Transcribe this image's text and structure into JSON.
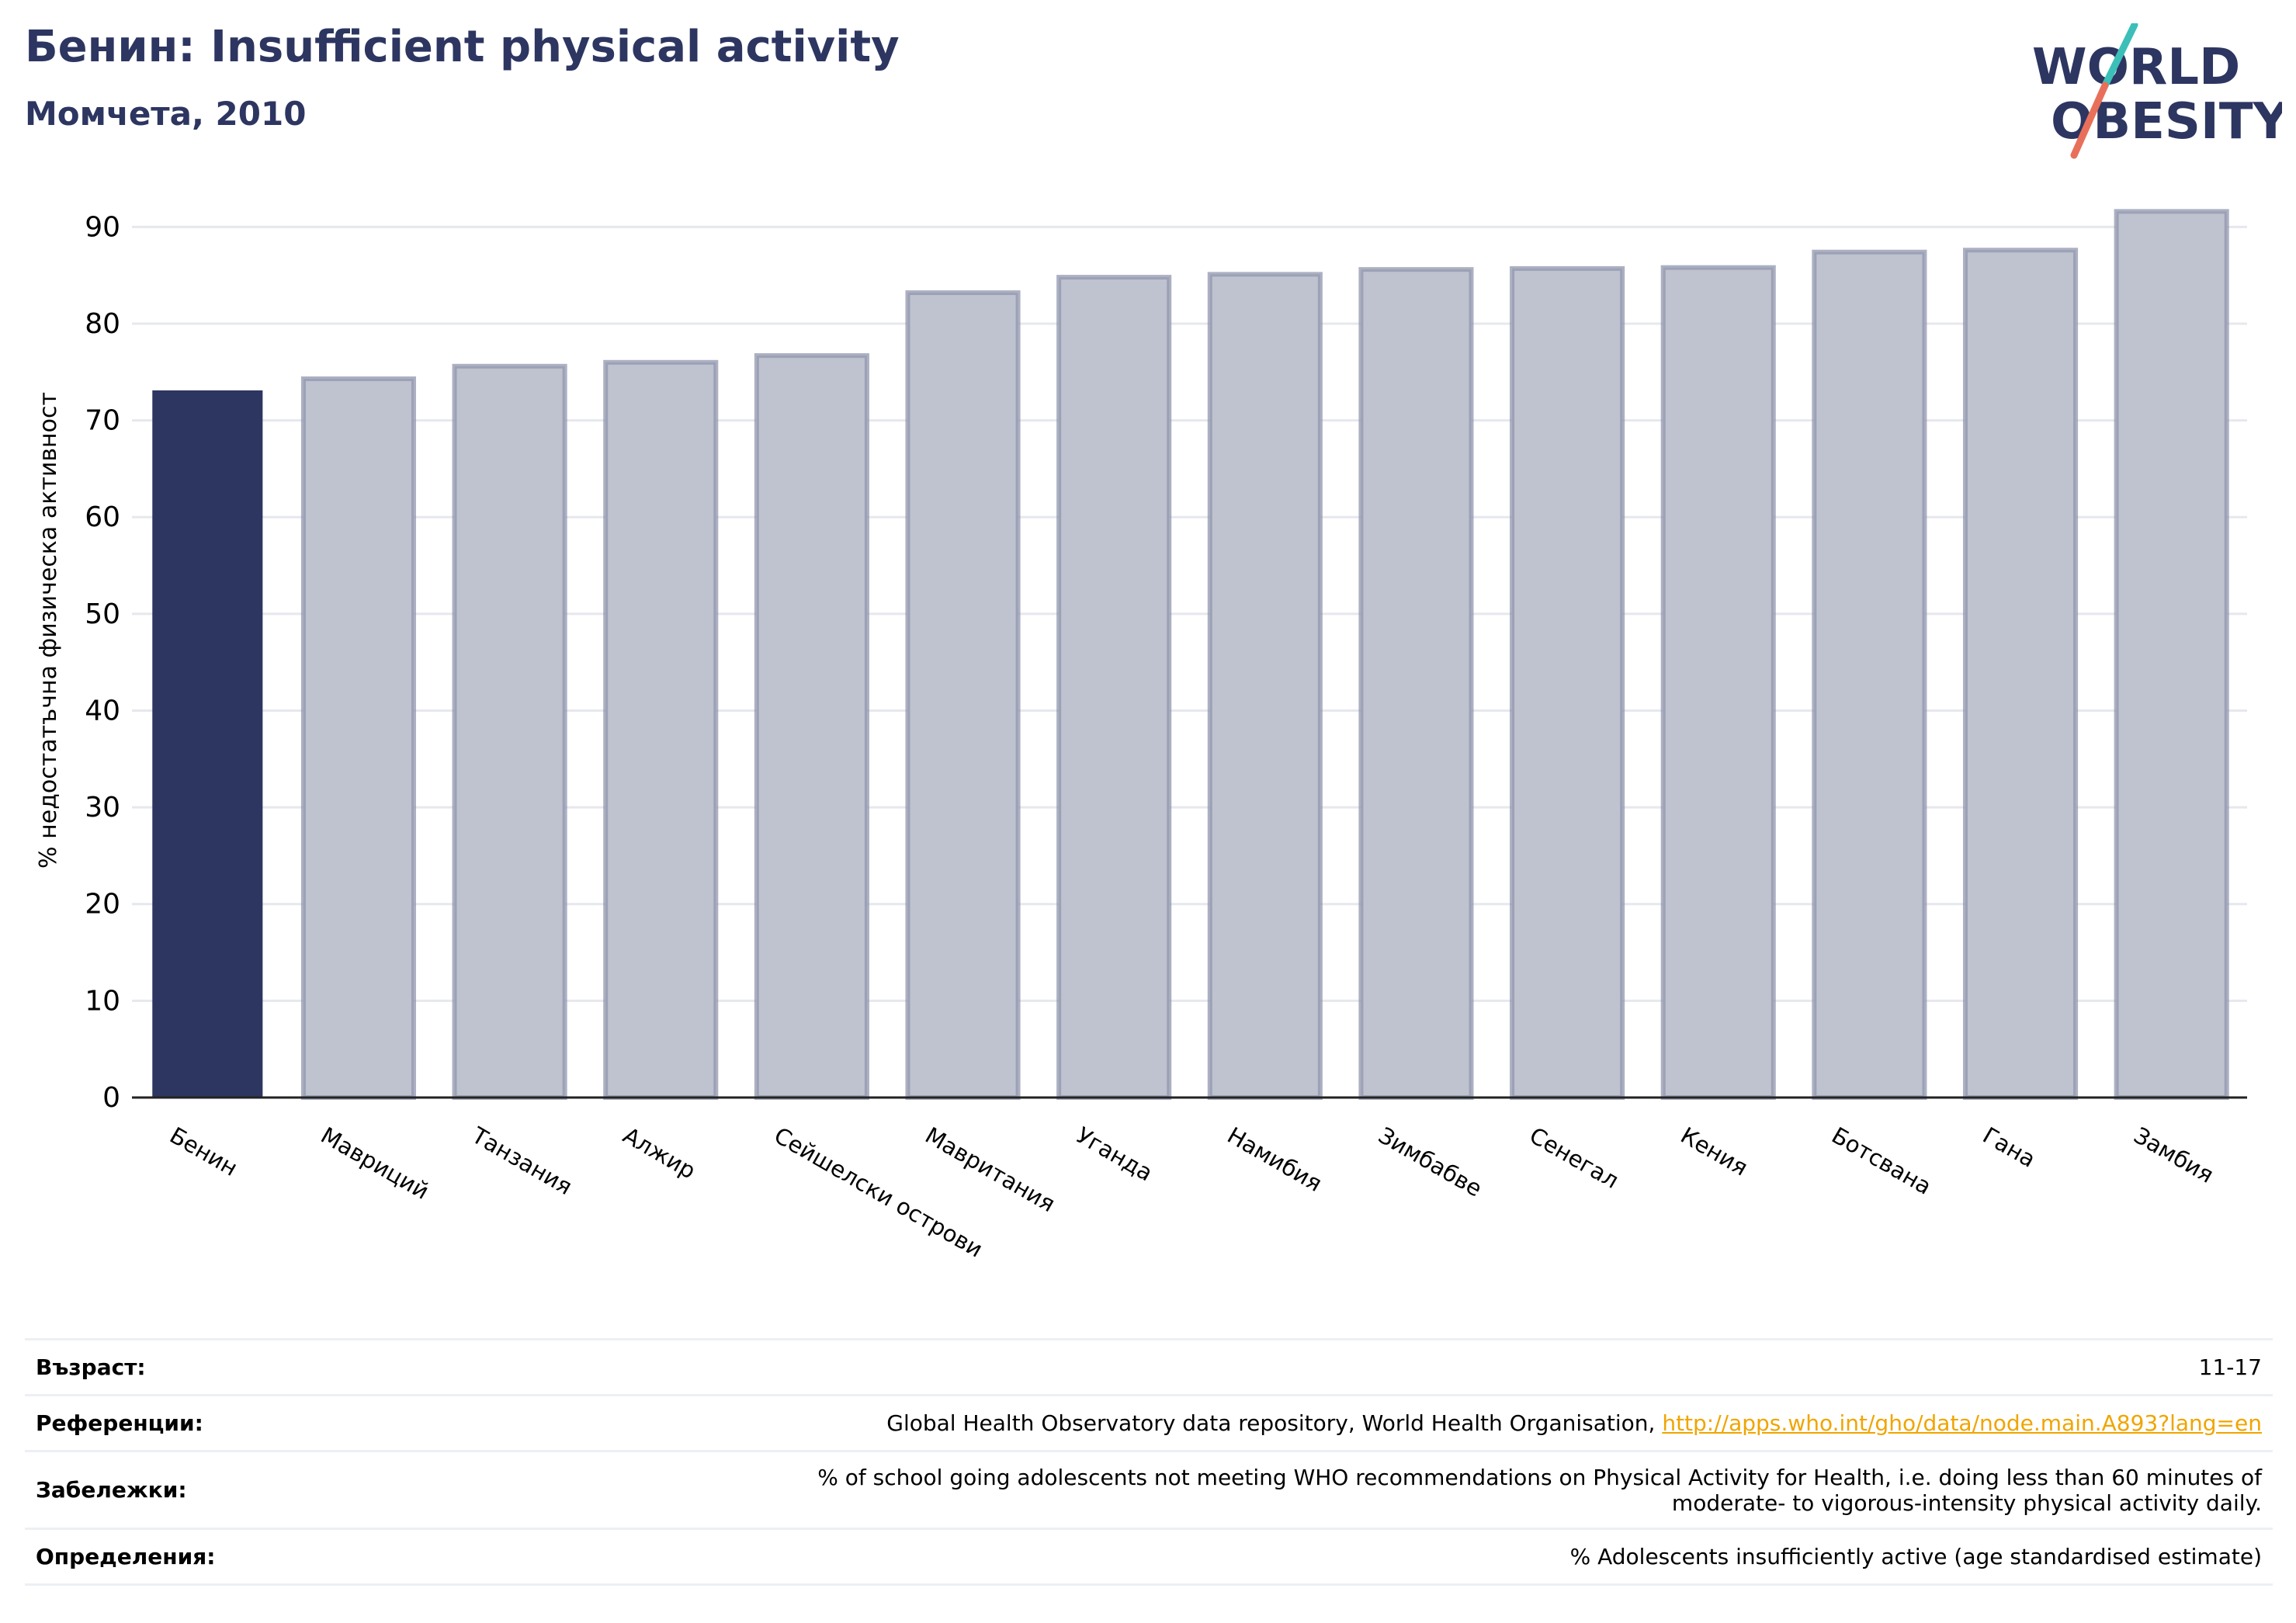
{
  "header": {
    "title": "Бенин: Insufficient physical activity",
    "subtitle": "Момчета, 2010"
  },
  "logo": {
    "line1": "WORLD",
    "line2": "OBESITY",
    "colors": {
      "navy": "#2d3561",
      "teal": "#3bbfb8",
      "coral": "#e8705a"
    }
  },
  "colors": {
    "highlight_bar": "#2d3561",
    "other_bar_fill": "#bfc2cf",
    "other_bar_stroke": "#9095ad",
    "grid": "#e6e8ee",
    "title": "#2d3561",
    "link": "#f0a500"
  },
  "chart_data": {
    "type": "bar",
    "ylabel": "% недостатъчна физическа активност",
    "xlabel": "",
    "ylim": [
      0,
      95
    ],
    "yticks": [
      0,
      10,
      20,
      30,
      40,
      50,
      60,
      70,
      80,
      90
    ],
    "grid": true,
    "highlight": "Бенин",
    "categories": [
      "Бенин",
      "Мавриций",
      "Танзания",
      "Алжир",
      "Сейшелски острови",
      "Мавритания",
      "Уганда",
      "Намибия",
      "Зимбабве",
      "Сенегал",
      "Кения",
      "Ботсвана",
      "Гана",
      "Замбия"
    ],
    "values": [
      73.1,
      74.3,
      75.6,
      76.0,
      76.7,
      83.2,
      84.8,
      85.1,
      85.6,
      85.7,
      85.8,
      87.4,
      87.6,
      91.6
    ]
  },
  "info": {
    "age_label": "Възраст:",
    "age_value": "11-17",
    "refs_label": "Референции:",
    "refs_text": "Global Health Observatory data repository, World Health Organisation, ",
    "refs_link": "http://apps.who.int/gho/data/node.main.A893?lang=en",
    "notes_label": "Забележки:",
    "notes_line1": "% of school going adolescents not meeting WHO recommendations on Physical Activity for Health, i.e. doing less than 60 minutes of",
    "notes_line2": "moderate- to vigorous-intensity physical activity daily.",
    "defs_label": "Определения:",
    "defs_value": "% Adolescents insufficiently active (age standardised estimate)"
  }
}
